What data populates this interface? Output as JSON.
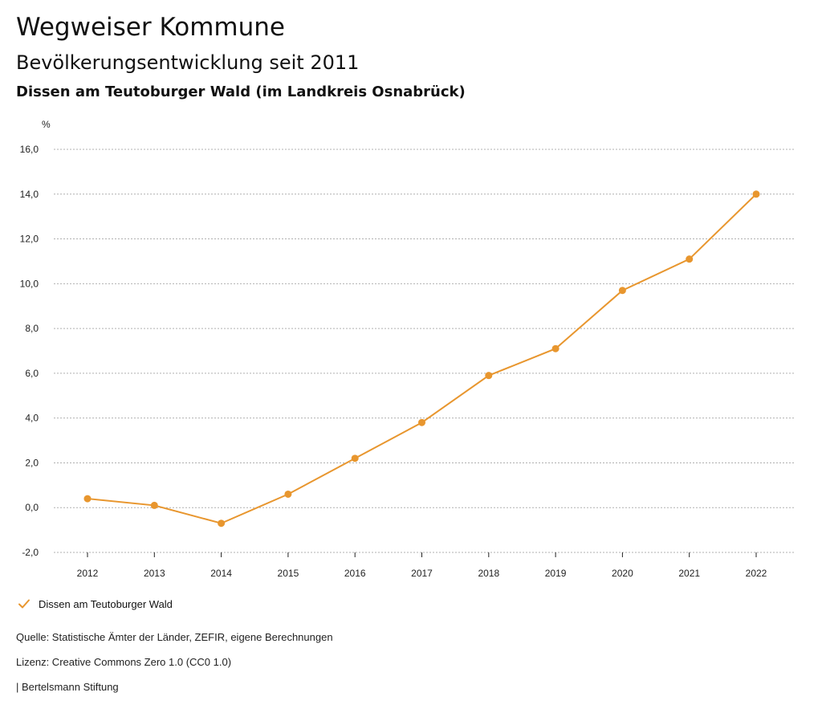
{
  "header": {
    "title": "Wegweiser Kommune",
    "subtitle": "Bevölkerungsentwicklung seit 2011",
    "region": "Dissen am Teutoburger Wald (im Landkreis Osnabrück)"
  },
  "colors": {
    "series": "#e8962e",
    "grid": "#b0b0b0",
    "axis": "#222222"
  },
  "chart_data": {
    "type": "line",
    "title": "Bevölkerungsentwicklung seit 2011",
    "xlabel": "",
    "ylabel": "%",
    "ylim": [
      -2,
      16
    ],
    "y_ticks": [
      -2,
      0,
      2,
      4,
      6,
      8,
      10,
      12,
      14,
      16
    ],
    "y_tick_labels": [
      "-2,0",
      "0,0",
      "2,0",
      "4,0",
      "6,0",
      "8,0",
      "10,0",
      "12,0",
      "14,0",
      "16,0"
    ],
    "categories": [
      "2012",
      "2013",
      "2014",
      "2015",
      "2016",
      "2017",
      "2018",
      "2019",
      "2020",
      "2021",
      "2022"
    ],
    "grid": true,
    "legend_position": "bottom-left",
    "series": [
      {
        "name": "Dissen am Teutoburger Wald",
        "values": [
          0.4,
          0.1,
          -0.7,
          0.6,
          2.2,
          3.8,
          5.9,
          7.1,
          9.7,
          11.1,
          14.0
        ]
      }
    ]
  },
  "legend": {
    "label": "Dissen am Teutoburger Wald",
    "icon": "check-icon"
  },
  "footer": {
    "source": "Quelle: Statistische Ämter der Länder, ZEFIR, eigene Berechnungen",
    "license": "Lizenz: Creative Commons Zero 1.0 (CC0 1.0)",
    "publisher": "| Bertelsmann Stiftung"
  }
}
